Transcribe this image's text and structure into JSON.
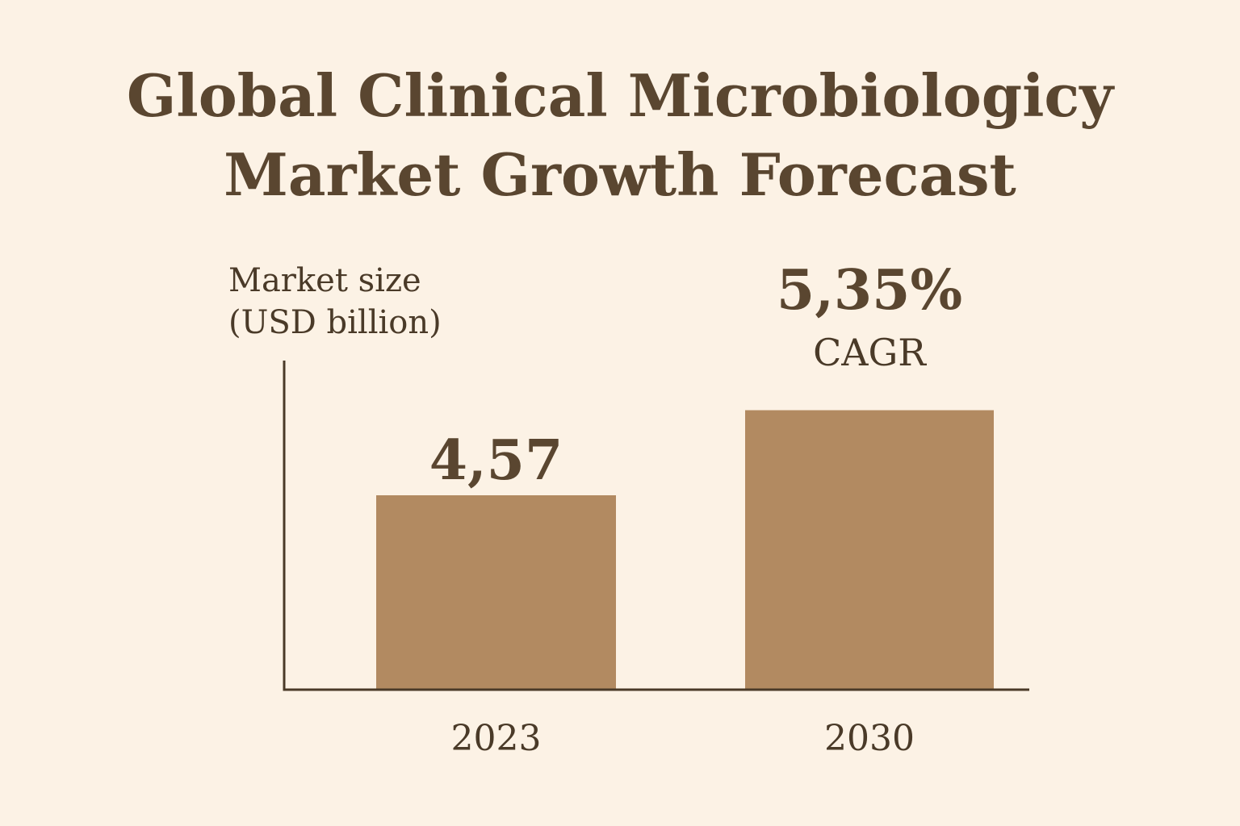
{
  "colors": {
    "background": "#fcf2e5",
    "bar": "#b28a61",
    "text": "#5a4630",
    "axis": "#4a3a28"
  },
  "chart_data": {
    "type": "bar",
    "title": [
      "Global Clinical Microbiologicy",
      "Market Growth Forecast"
    ],
    "ylabel": [
      "Market size",
      "(USD billion)"
    ],
    "xlabel": "",
    "categories": [
      "2023",
      "2030"
    ],
    "values": [
      4.57,
      6.57
    ],
    "data_labels": [
      "4,57",
      ""
    ],
    "ylim": [
      0,
      8.4
    ],
    "grid": false,
    "annotation": {
      "value": "5,35%",
      "label": "CAGR",
      "category": "2030"
    }
  }
}
